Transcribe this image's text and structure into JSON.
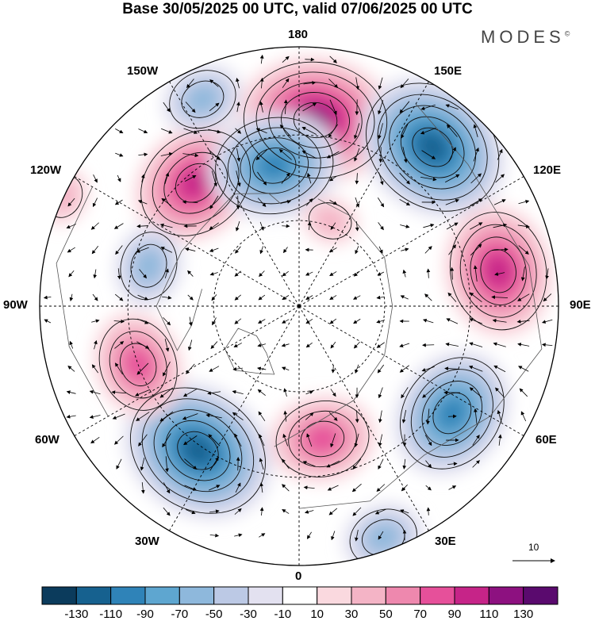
{
  "title": "Base 30/05/2025 00 UTC, valid 07/06/2025 00 UTC",
  "brand": "MODES",
  "brand_mark": "©",
  "longitude_labels": {
    "top": "180",
    "top_left": "150W",
    "top_right": "150E",
    "upper_left": "120W",
    "upper_right": "120E",
    "left": "90W",
    "right": "90E",
    "lower_left": "60W",
    "lower_right": "60E",
    "bottom_left": "30W",
    "bottom_right": "30E",
    "bottom": "0"
  },
  "reference_vector": "10",
  "colorbar": {
    "colors": [
      "#0b3b5c",
      "#16618f",
      "#2f83b8",
      "#5ea6d0",
      "#8eb8dc",
      "#bcc9e5",
      "#e3e1f0",
      "#ffffff",
      "#fad9df",
      "#f4b4c6",
      "#ee88ae",
      "#e6509a",
      "#c62488",
      "#8d1180",
      "#5a0a6e"
    ],
    "labels": [
      "-130",
      "-110",
      "-90",
      "-70",
      "-50",
      "-30",
      "-10",
      "10",
      "30",
      "50",
      "70",
      "90",
      "110",
      "130"
    ]
  },
  "anomaly_centers": [
    {
      "lon": 175,
      "colat": 0.72,
      "value": 100
    },
    {
      "lon": 140,
      "colat": 0.8,
      "value": -110
    },
    {
      "lon": 100,
      "colat": 0.78,
      "value": 85
    },
    {
      "lon": 55,
      "colat": 0.72,
      "value": -80
    },
    {
      "lon": 10,
      "colat": 0.52,
      "value": 60
    },
    {
      "lon": -35,
      "colat": 0.68,
      "value": -100
    },
    {
      "lon": -70,
      "colat": 0.66,
      "value": 75
    },
    {
      "lon": -140,
      "colat": 0.62,
      "value": 80
    },
    {
      "lon": -170,
      "colat": 0.55,
      "value": -80
    },
    {
      "lon": -105,
      "colat": 0.6,
      "value": -45
    },
    {
      "lon": -155,
      "colat": 0.88,
      "value": -50
    },
    {
      "lon": 20,
      "colat": 0.95,
      "value": -40
    },
    {
      "lon": -115,
      "colat": 1.0,
      "value": 30
    },
    {
      "lon": 160,
      "colat": 0.35,
      "value": 20
    }
  ]
}
